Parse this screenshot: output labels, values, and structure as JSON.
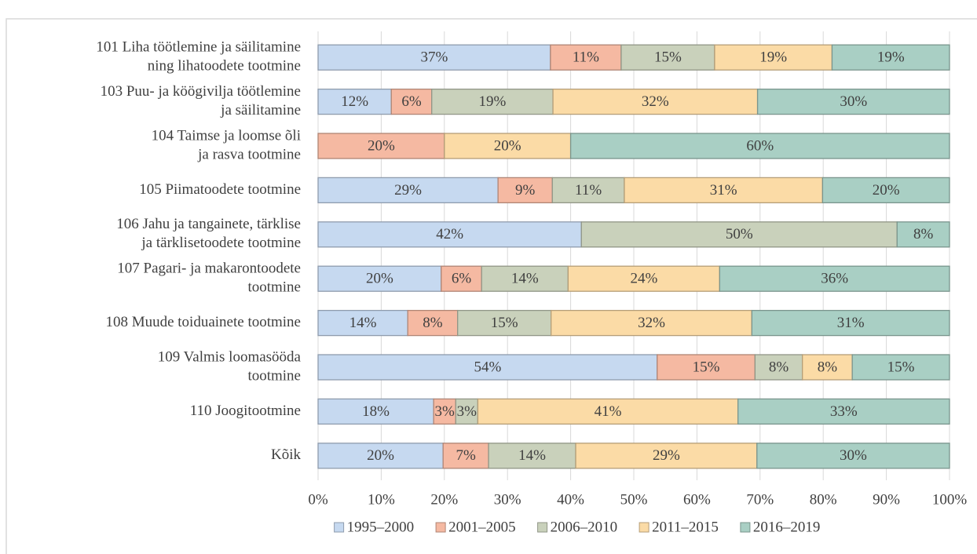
{
  "chart_data": {
    "type": "stacked-bar-horizontal",
    "categories": [
      [
        "101 Liha töötlemine ja säilitamine",
        "ning lihatoodete tootmine"
      ],
      [
        "103 Puu- ja köögivilja töötlemine",
        "ja säilitamine"
      ],
      [
        "104 Taimse ja loomse õli",
        "ja rasva tootmine"
      ],
      [
        "105 Piimatoodete tootmine"
      ],
      [
        "106 Jahu ja tangainete, tärklise",
        "ja tärklisetoodete tootmine"
      ],
      [
        "107 Pagari- ja makarontoodete",
        "tootmine"
      ],
      [
        "108 Muude toiduainete tootmine"
      ],
      [
        "109 Valmis loomasööda",
        "tootmine"
      ],
      [
        "110 Joogitootmine"
      ],
      [
        "Kõik"
      ]
    ],
    "series": [
      {
        "name": "1995–2000",
        "color": "#c6d9f0",
        "values": [
          36.8,
          11.6,
          null,
          28.5,
          41.7,
          19.5,
          14.2,
          53.7,
          18.3,
          19.8
        ],
        "value_labels": [
          "37%",
          "12%",
          null,
          "29%",
          "42%",
          "20%",
          "14%",
          "54%",
          "18%",
          "20%"
        ]
      },
      {
        "name": "2001–2005",
        "color": "#f5b9a2",
        "values": [
          11.2,
          6.4,
          20,
          8.6,
          null,
          6.4,
          7.9,
          15.5,
          3.5,
          7.2
        ],
        "value_labels": [
          "11%",
          "6%",
          "20%",
          "9%",
          null,
          "6%",
          "8%",
          "15%",
          "3%",
          "7%"
        ]
      },
      {
        "name": "2006–2010",
        "color": "#c9d1bb",
        "values": [
          14.8,
          19.2,
          null,
          11.4,
          50,
          13.7,
          14.8,
          7.5,
          3.5,
          13.8
        ],
        "value_labels": [
          "15%",
          "19%",
          null,
          "11%",
          "50%",
          "14%",
          "15%",
          "8%",
          "3%",
          "14%"
        ]
      },
      {
        "name": "2011–2015",
        "color": "#fbdba6",
        "values": [
          18.6,
          32.4,
          20,
          31.4,
          null,
          24,
          31.8,
          7.9,
          41.2,
          28.7
        ],
        "value_labels": [
          "19%",
          "32%",
          "20%",
          "31%",
          null,
          "24%",
          "32%",
          "8%",
          "41%",
          "29%"
        ]
      },
      {
        "name": "2016–2019",
        "color": "#a9cfc4",
        "values": [
          18.6,
          30.4,
          60,
          20.1,
          8.3,
          36.4,
          31.3,
          15.4,
          33.5,
          30.5
        ],
        "value_labels": [
          "19%",
          "30%",
          "60%",
          "20%",
          "8%",
          "36%",
          "31%",
          "15%",
          "33%",
          "30%"
        ]
      }
    ],
    "xlim": [
      0,
      100
    ],
    "xticks": [
      {
        "value": 0,
        "label": "0%"
      },
      {
        "value": 10,
        "label": "10%"
      },
      {
        "value": 20,
        "label": "20%"
      },
      {
        "value": 30,
        "label": "30%"
      },
      {
        "value": 40,
        "label": "40%"
      },
      {
        "value": 50,
        "label": "50%"
      },
      {
        "value": 60,
        "label": "60%"
      },
      {
        "value": 70,
        "label": "70%"
      },
      {
        "value": 80,
        "label": "80%"
      },
      {
        "value": 90,
        "label": "90%"
      },
      {
        "value": 100,
        "label": "100%"
      }
    ],
    "grid": true,
    "legend": "bottom"
  }
}
